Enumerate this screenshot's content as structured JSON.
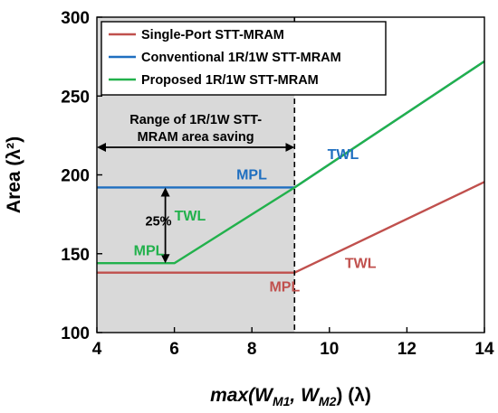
{
  "chart_data": {
    "type": "line",
    "xlabel": "max(W_M1, W_M2) (λ)",
    "xlabel_parts": {
      "main": "max(W",
      "sub1": "M1",
      "mid": ", W",
      "sub2": "M2",
      "tail": ") (λ)"
    },
    "ylabel": "Area (λ²)",
    "xlim": [
      4,
      14
    ],
    "ylim": [
      100,
      300
    ],
    "xticks": [
      4,
      6,
      8,
      10,
      12,
      14
    ],
    "yticks": [
      100,
      150,
      200,
      250,
      300
    ],
    "grid": false,
    "legend_position": "top-right",
    "series": [
      {
        "name": "Single-Port STT-MRAM",
        "color": "#c0504d",
        "x": [
          4,
          9.1,
          14
        ],
        "y": [
          138,
          138,
          195.5
        ]
      },
      {
        "name": "Conventional 1R/1W STT-MRAM",
        "color": "#1f6fc0",
        "x": [
          4,
          9.1,
          14
        ],
        "y": [
          192,
          192,
          272
        ]
      },
      {
        "name": "Proposed 1R/1W STT-MRAM",
        "color": "#22b14c",
        "x": [
          4,
          6,
          9.1,
          14
        ],
        "y": [
          144,
          144,
          192,
          272
        ]
      }
    ],
    "shaded_region": {
      "x": [
        4,
        9.1
      ],
      "color": "#d9d9d9",
      "label_lines": [
        "Range of 1R/1W STT-",
        "MRAM area saving"
      ]
    },
    "annotations": [
      {
        "text": "TWL",
        "x": 9.95,
        "y": 210,
        "color": "#1f6fc0"
      },
      {
        "text": "MPL",
        "x": 7.6,
        "y": 197,
        "color": "#1f6fc0"
      },
      {
        "text": "TWL",
        "x": 6.0,
        "y": 171,
        "color": "#22b14c"
      },
      {
        "text": "MPL",
        "x": 4.95,
        "y": 149,
        "color": "#22b14c"
      },
      {
        "text": "TWL",
        "x": 10.4,
        "y": 141,
        "color": "#c0504d"
      },
      {
        "text": "MPL",
        "x": 8.45,
        "y": 126,
        "color": "#c0504d"
      },
      {
        "text": "25%",
        "x": 5.25,
        "y": 168,
        "color": "#000000"
      }
    ],
    "percent_arrow": {
      "x": 6.0,
      "y_top": 192,
      "y_bottom": 144,
      "label": "25%"
    }
  }
}
